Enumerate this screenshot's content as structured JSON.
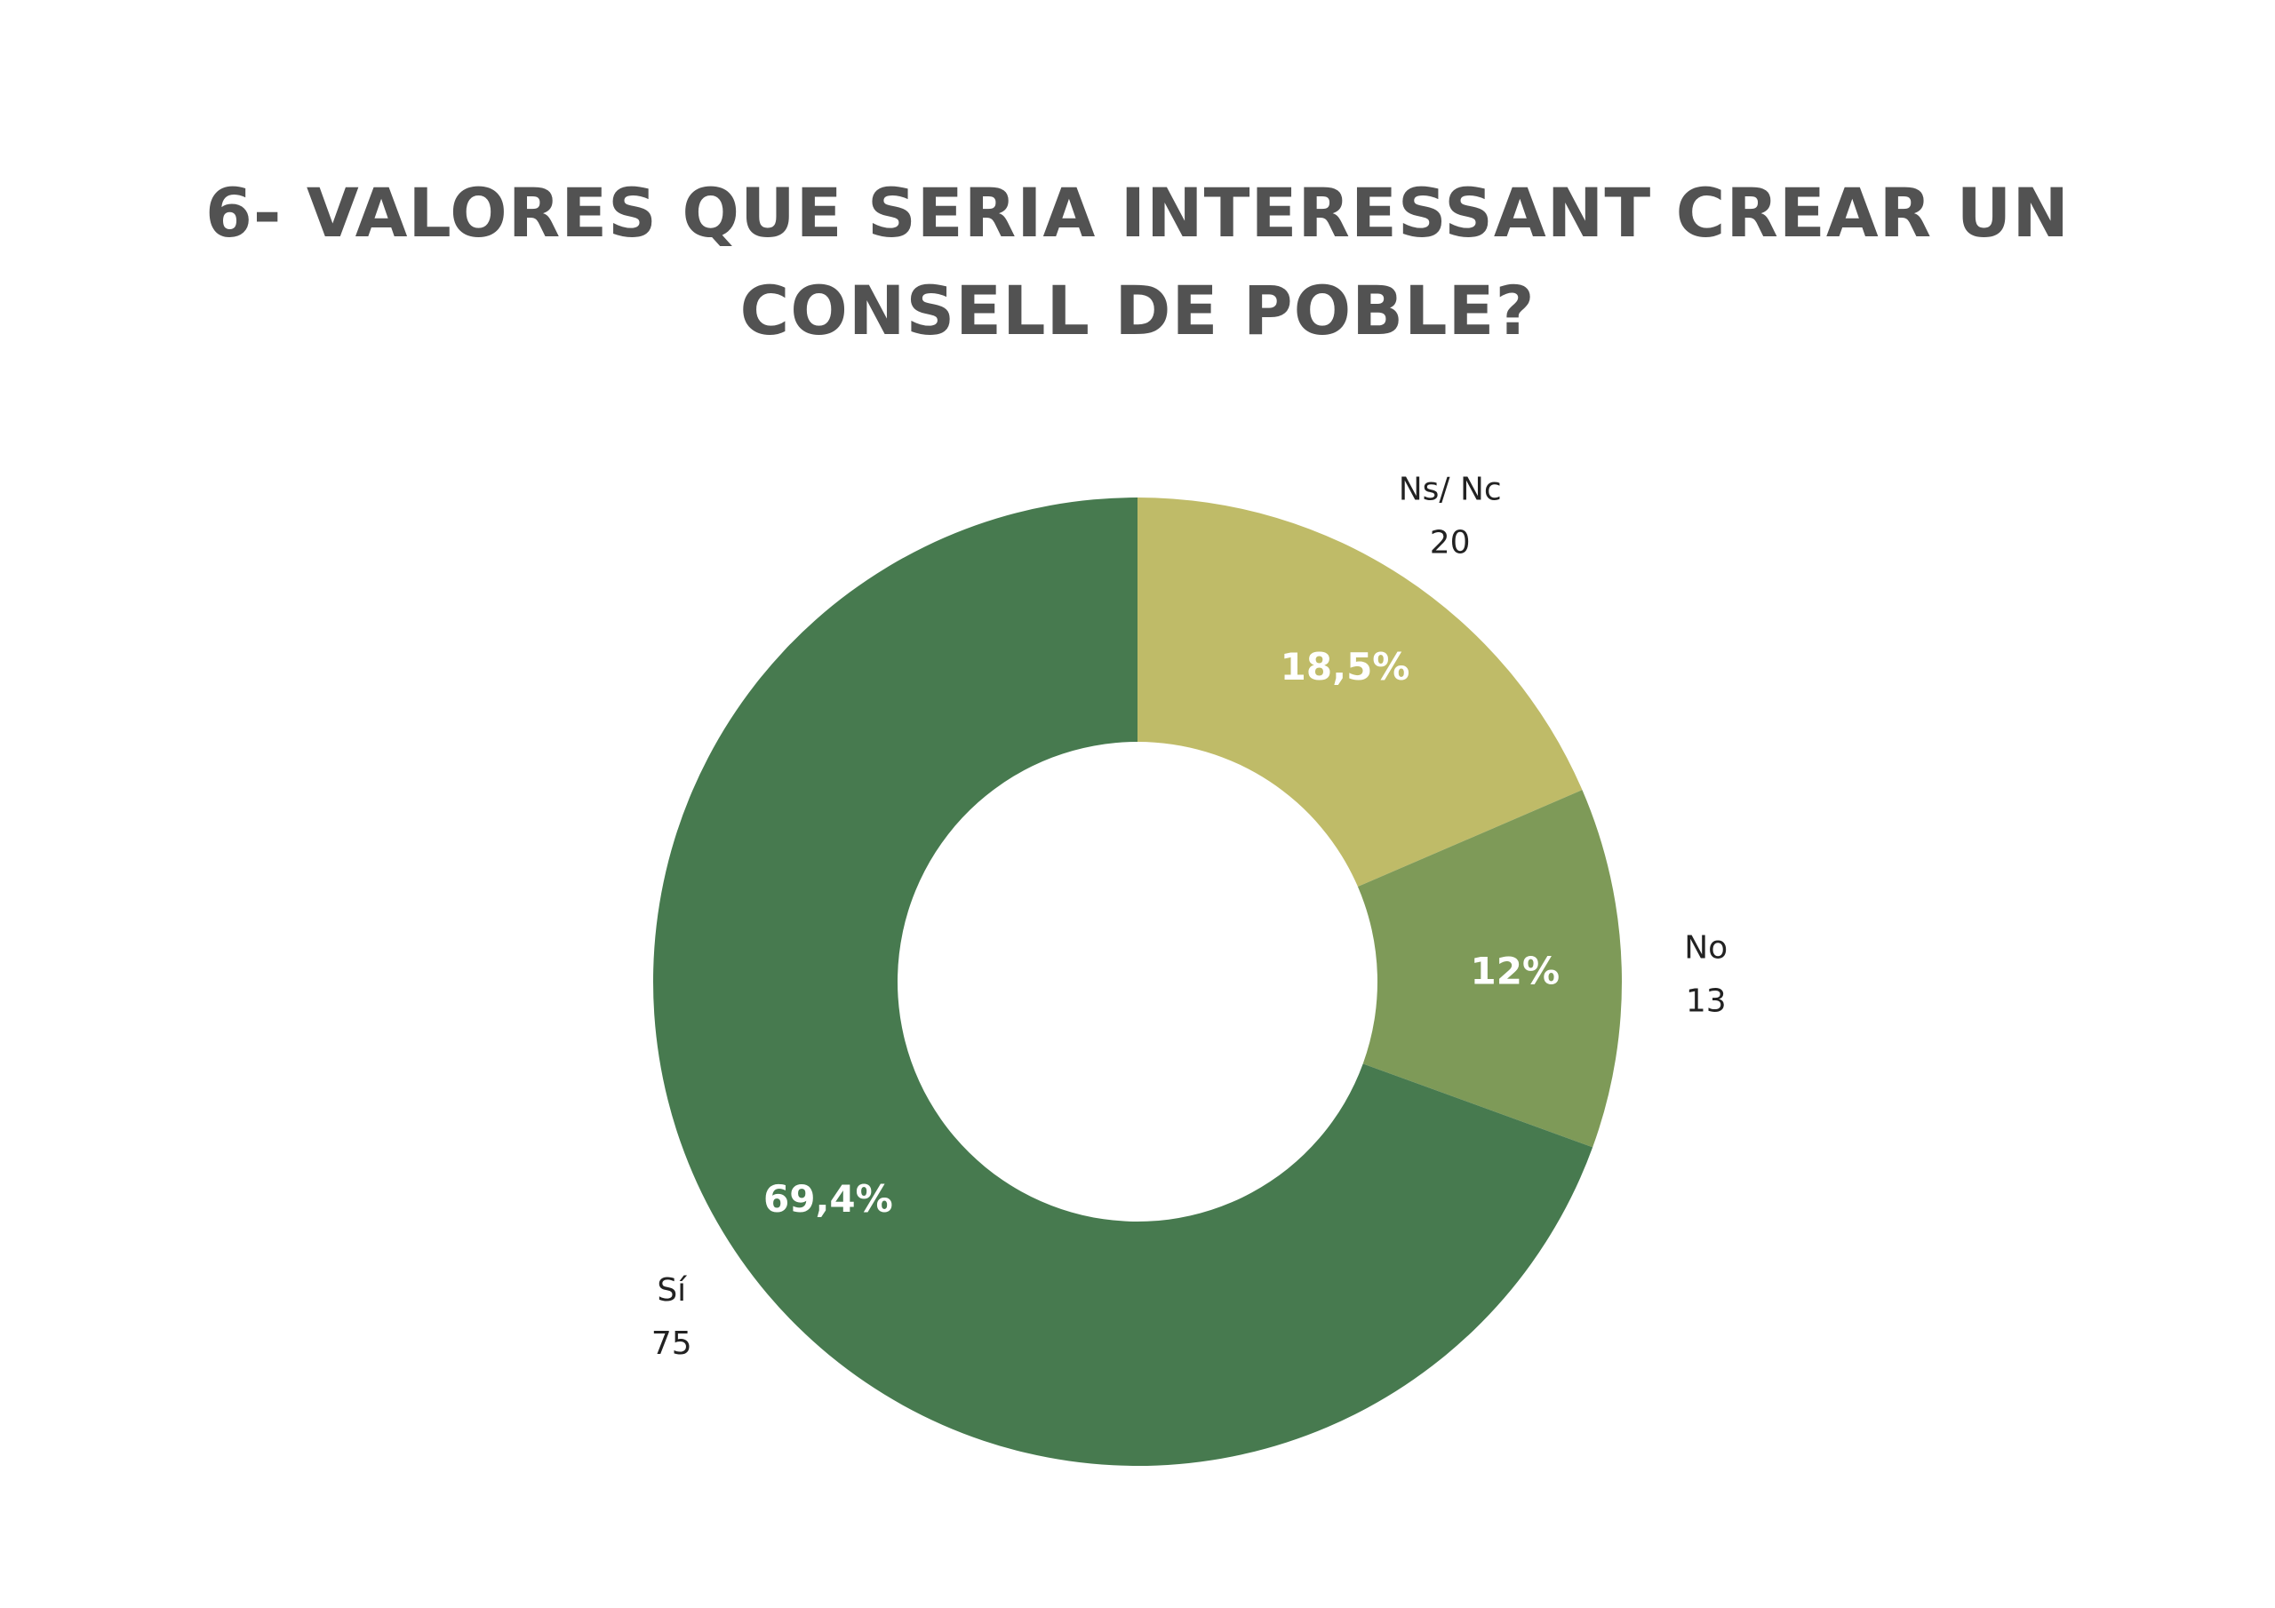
{
  "chart_data": {
    "type": "pie",
    "title": "6- VALORES QUE SERIA INTERESSANT CREAR UN CONSELL DE POBLE?",
    "donut": true,
    "slices": [
      {
        "label": "Ns/ Nc",
        "value": 20,
        "percent_label": "18,5%",
        "color": "#bfbb68"
      },
      {
        "label": "No",
        "value": 13,
        "percent_label": "12%",
        "color": "#7e9a58"
      },
      {
        "label": "Sí",
        "value": 75,
        "percent_label": "69,4%",
        "color": "#477a4f"
      }
    ]
  }
}
